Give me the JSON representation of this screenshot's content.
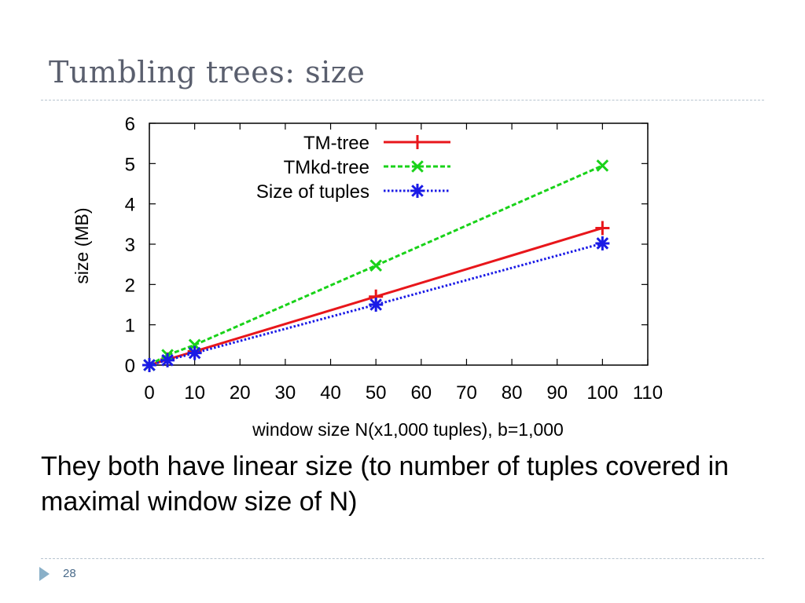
{
  "slide": {
    "title": "Tumbling trees: size",
    "body": "They both have linear size (to number of tuples covered in maximal window size of N)",
    "page_number": "28"
  },
  "chart_data": {
    "type": "line",
    "title": "",
    "xlabel": "window size N(x1,000 tuples), b=1,000",
    "ylabel": "size (MB)",
    "xlim": [
      0,
      110
    ],
    "ylim": [
      0,
      6
    ],
    "xticks": [
      0,
      10,
      20,
      30,
      40,
      50,
      60,
      70,
      80,
      90,
      100,
      110
    ],
    "yticks": [
      0,
      1,
      2,
      3,
      4,
      5,
      6
    ],
    "grid": false,
    "legend_position": "top-left",
    "series": [
      {
        "name": "TM-tree",
        "color": "#e8161b",
        "line_style": "solid",
        "marker": "plus",
        "x": [
          0,
          4,
          10,
          50,
          100
        ],
        "y": [
          0.0,
          0.14,
          0.34,
          1.7,
          3.4
        ]
      },
      {
        "name": "TMkd-tree",
        "color": "#19d219",
        "line_style": "dashed",
        "marker": "x",
        "x": [
          0,
          4,
          10,
          50,
          100
        ],
        "y": [
          0.0,
          0.25,
          0.5,
          2.47,
          4.95
        ]
      },
      {
        "name": "Size of tuples",
        "color": "#1a1ae6",
        "line_style": "dotted",
        "marker": "star",
        "x": [
          0,
          4,
          10,
          50,
          100
        ],
        "y": [
          0.0,
          0.12,
          0.3,
          1.5,
          3.02
        ]
      }
    ]
  }
}
